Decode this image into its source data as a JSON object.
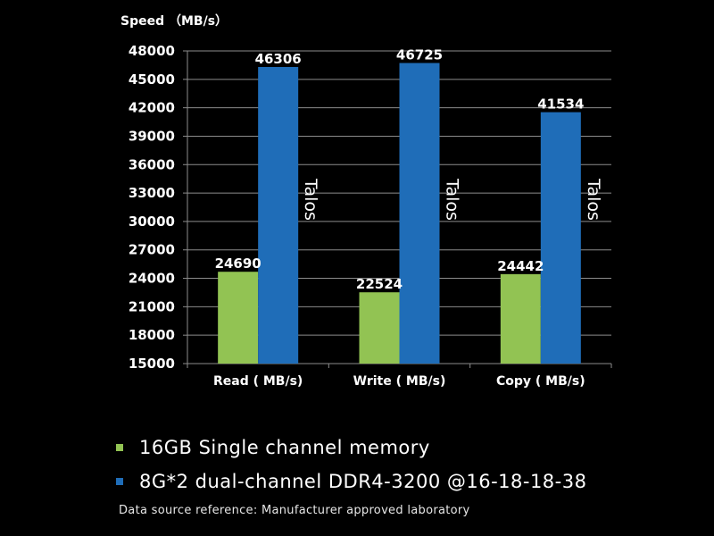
{
  "chart_data": {
    "type": "bar",
    "ylabel": "Speed （MB/s）",
    "ylim": [
      15000,
      48000
    ],
    "yticks": [
      "15000",
      "18000",
      "21000",
      "24000",
      "27000",
      "30000",
      "33000",
      "36000",
      "39000",
      "42000",
      "45000",
      "48000"
    ],
    "categories": [
      "Read ( MB/s)",
      "Write ( MB/s)",
      "Copy ( MB/s)"
    ],
    "grid": true,
    "series": [
      {
        "name": "16GB Single channel memory",
        "color": "#92c353",
        "values": [
          24690,
          22524,
          24442
        ]
      },
      {
        "name": "8G*2 dual-channel DDR4-3200 @16-18-18-38",
        "color": "#1f6db8",
        "values": [
          46306,
          46725,
          41534
        ]
      }
    ],
    "bar_annotation": "Talos"
  },
  "footnote": "Data source reference: Manufacturer approved laboratory"
}
